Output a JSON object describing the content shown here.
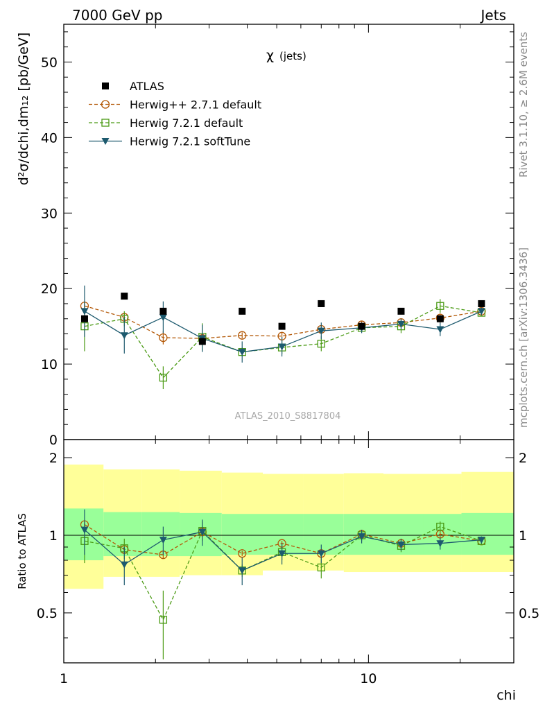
{
  "header": {
    "left": "7000 GeV pp",
    "right": "Jets"
  },
  "side_labels": {
    "rivet": "Rivet 3.1.10, ≥ 2.6M events",
    "mcplots": "mcplots.cern.ch [arXiv:1306.3436]"
  },
  "watermark": "ATLAS_2010_S8817804",
  "colors": {
    "atlas": "#000000",
    "herwigpp": "#b35806",
    "herwig721": "#4a9a14",
    "softtune": "#1d5a6e",
    "band_outer": "#ffff99",
    "band_inner": "#99ff99"
  },
  "chart_data": [
    {
      "type": "scatter",
      "title_main": "χ",
      "title_sub": "(jets)",
      "ylabel": "d²σ/dchi,dm₁₂ [pb/GeV]",
      "xlabel": "chi",
      "x_scale": "log",
      "xlim": [
        1,
        30
      ],
      "ylim": [
        0,
        55
      ],
      "y_ticks": [
        "0",
        "10",
        "20",
        "30",
        "40",
        "50"
      ],
      "legend": [
        "ATLAS",
        "Herwig++ 2.7.1 default",
        "Herwig 7.2.1 default",
        "Herwig 7.2.1 softTune"
      ],
      "legend_position": "top-left",
      "x": [
        1.17,
        1.58,
        2.12,
        2.85,
        3.85,
        5.2,
        7.0,
        9.5,
        12.8,
        17.2,
        23.5
      ],
      "series": [
        {
          "name": "ATLAS",
          "values": [
            16.0,
            19.0,
            17.0,
            13.0,
            17.0,
            15.0,
            18.0,
            15.0,
            17.0,
            16.0,
            18.0
          ]
        },
        {
          "name": "Herwig++ 2.7.1 default",
          "values": [
            17.7,
            16.2,
            13.5,
            13.4,
            13.8,
            13.7,
            14.6,
            15.2,
            15.5,
            16.1,
            17.0
          ]
        },
        {
          "name": "Herwig 7.2.1 default",
          "values": [
            15.0,
            16.0,
            8.2,
            13.6,
            11.6,
            12.2,
            12.7,
            14.8,
            15.0,
            17.7,
            16.8
          ]
        },
        {
          "name": "Herwig 7.2.1 softTune",
          "values": [
            17.0,
            13.8,
            16.2,
            13.4,
            11.6,
            12.3,
            14.4,
            14.8,
            15.3,
            14.6,
            17.0
          ]
        }
      ]
    },
    {
      "type": "line",
      "ylabel": "Ratio to ATLAS",
      "xlabel": "chi",
      "x_scale": "log",
      "xlim": [
        1,
        30
      ],
      "ylim": [
        0.32,
        2.35
      ],
      "y_ticks": [
        "0.5",
        "1",
        "2"
      ],
      "x_ticks": [
        "1",
        "10"
      ],
      "band_edges": [
        1.0,
        1.35,
        1.8,
        2.4,
        3.3,
        4.5,
        6.1,
        8.3,
        11.2,
        15.1,
        20.2,
        30.0
      ],
      "band_outer": {
        "lo": [
          0.62,
          0.69,
          0.69,
          0.7,
          0.7,
          0.73,
          0.73,
          0.72,
          0.72,
          0.72,
          0.72
        ],
        "hi": [
          1.88,
          1.8,
          1.8,
          1.78,
          1.75,
          1.73,
          1.73,
          1.74,
          1.73,
          1.73,
          1.76
        ]
      },
      "band_inner": {
        "lo": [
          0.8,
          0.83,
          0.83,
          0.83,
          0.84,
          0.84,
          0.84,
          0.84,
          0.84,
          0.84,
          0.84
        ],
        "hi": [
          1.27,
          1.23,
          1.23,
          1.22,
          1.21,
          1.21,
          1.21,
          1.21,
          1.21,
          1.21,
          1.22
        ]
      },
      "series": [
        {
          "name": "Herwig++ 2.7.1 default",
          "values": [
            1.1,
            0.88,
            0.84,
            1.03,
            0.85,
            0.93,
            0.85,
            1.01,
            0.93,
            1.01,
            0.95
          ]
        },
        {
          "name": "Herwig 7.2.1 default",
          "values": [
            0.95,
            0.89,
            0.47,
            1.04,
            0.73,
            0.86,
            0.75,
            1.0,
            0.91,
            1.08,
            0.95
          ]
        },
        {
          "name": "Herwig 7.2.1 softTune",
          "values": [
            1.05,
            0.77,
            0.96,
            1.03,
            0.73,
            0.85,
            0.85,
            0.99,
            0.92,
            0.93,
            0.96
          ]
        }
      ]
    }
  ]
}
